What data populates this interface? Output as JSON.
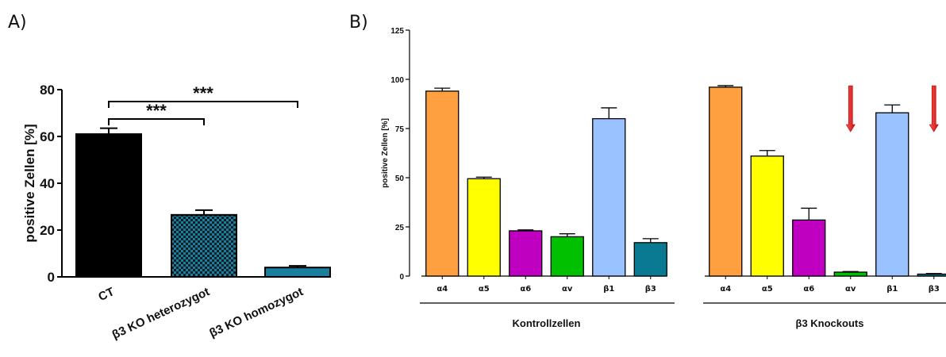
{
  "panels": {
    "a_label": "A)",
    "b_label": "B)"
  },
  "chart_data": [
    {
      "type": "bar",
      "title": "",
      "ylabel": "positive Zellen [%]",
      "xlabel": "",
      "ylim": [
        0,
        80
      ],
      "yticks": [
        "0",
        "20",
        "40",
        "60",
        "80"
      ],
      "categories": [
        "CT",
        "β3 KO heterozygot",
        "β3 KO homozygot"
      ],
      "values": [
        61,
        26.5,
        4
      ],
      "errors": [
        2.5,
        2,
        0.7
      ],
      "fills": [
        "solid",
        "checker",
        "solid"
      ],
      "colors": [
        "#000000",
        "#1a7f9c",
        "#1a7f9c"
      ],
      "significance": [
        {
          "from": 0,
          "to": 1,
          "label": "***"
        },
        {
          "from": 0,
          "to": 2,
          "label": "***"
        }
      ]
    },
    {
      "type": "bar",
      "title": "",
      "ylabel": "positive Zellen [%]",
      "xlabel": "",
      "ylim": [
        0,
        125
      ],
      "yticks": [
        "0",
        "25",
        "50",
        "75",
        "100",
        "125"
      ],
      "groups": [
        {
          "name": "Kontrollzellen",
          "categories": [
            "α4",
            "α5",
            "α6",
            "αv",
            "β1",
            "β3"
          ],
          "values": [
            94,
            49.5,
            23,
            20,
            80,
            17
          ],
          "errors": [
            1.5,
            0.8,
            0.5,
            1.5,
            5.5,
            2
          ]
        },
        {
          "name": "β3 Knockouts",
          "categories": [
            "α4",
            "α5",
            "α6",
            "αv",
            "β1",
            "β3"
          ],
          "values": [
            96,
            61,
            28.5,
            2,
            83,
            1
          ],
          "errors": [
            0.8,
            2.8,
            6,
            0.3,
            4,
            0.3
          ],
          "arrows_at": [
            3,
            5
          ]
        }
      ],
      "colors": [
        "#ffa040",
        "#ffff00",
        "#c000c0",
        "#00c000",
        "#99c2ff",
        "#0a7a93"
      ],
      "arrow_color": "#ee2222"
    }
  ]
}
